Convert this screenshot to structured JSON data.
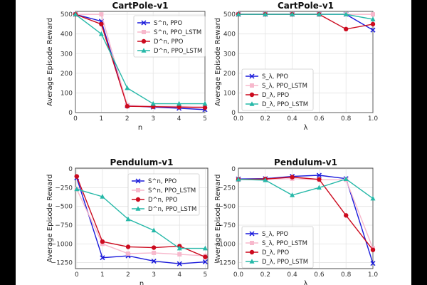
{
  "chart_data": [
    {
      "type": "line",
      "title": "CartPole-v1",
      "xlabel": "n",
      "ylabel": "Average Episode Reward",
      "x": [
        0,
        1,
        2,
        3,
        4,
        5
      ],
      "xticks": [
        "0",
        "1",
        "2",
        "3",
        "4",
        "5"
      ],
      "xlim": [
        0,
        5
      ],
      "yticks": [
        0,
        100,
        200,
        300,
        400,
        500
      ],
      "ylim": [
        0,
        515
      ],
      "legend": "top-right",
      "series": [
        {
          "name": "S^n, PPO",
          "values": [
            500,
            465,
            35,
            28,
            22,
            15
          ]
        },
        {
          "name": "S^n, PPO_LSTM",
          "values": [
            500,
            500,
            38,
            32,
            32,
            30
          ]
        },
        {
          "name": "D^n, PPO",
          "values": [
            500,
            450,
            32,
            30,
            28,
            25
          ]
        },
        {
          "name": "D^n, PPO_LSTM",
          "values": [
            500,
            400,
            125,
            45,
            45,
            45
          ]
        }
      ]
    },
    {
      "type": "line",
      "title": "CartPole-v1",
      "xlabel": "λ",
      "ylabel": "Average Episode Reward",
      "x": [
        0.0,
        0.2,
        0.4,
        0.6,
        0.8,
        1.0
      ],
      "xticks": [
        "0.0",
        "0.2",
        "0.4",
        "0.6",
        "0.8",
        "1.0"
      ],
      "xlim": [
        0,
        1
      ],
      "yticks": [
        0,
        100,
        200,
        300,
        400,
        500
      ],
      "ylim": [
        0,
        515
      ],
      "legend": "bottom-left",
      "series": [
        {
          "name": "S_λ, PPO",
          "values": [
            500,
            500,
            500,
            500,
            500,
            420
          ]
        },
        {
          "name": "S_λ, PPO_LSTM",
          "values": [
            500,
            500,
            500,
            500,
            500,
            500
          ]
        },
        {
          "name": "D_λ, PPO",
          "values": [
            500,
            500,
            500,
            500,
            425,
            450
          ]
        },
        {
          "name": "D_λ, PPO_LSTM",
          "values": [
            500,
            500,
            500,
            500,
            500,
            475
          ]
        }
      ]
    },
    {
      "type": "line",
      "title": "Pendulum-v1",
      "xlabel": "n",
      "ylabel": "Average Episode Reward",
      "x": [
        0,
        1,
        2,
        3,
        4,
        5
      ],
      "xticks": [
        "0",
        "1",
        "2",
        "3",
        "4",
        "5"
      ],
      "xlim": [
        -0.05,
        5.1
      ],
      "yticks": [
        0,
        -250,
        -500,
        -750,
        -1000,
        -1250
      ],
      "ytick_labels": [
        "0",
        "−250",
        "−500",
        "−750",
        "−1000",
        "−1250"
      ],
      "ylim": [
        -1330,
        10
      ],
      "legend": "top-right",
      "series": [
        {
          "name": "S^n, PPO",
          "values": [
            -120,
            -1185,
            -1160,
            -1230,
            -1265,
            -1240
          ]
        },
        {
          "name": "S^n, PPO_LSTM",
          "values": [
            -270,
            -1000,
            -1130,
            -1120,
            -1140,
            -1160
          ]
        },
        {
          "name": "D^n, PPO",
          "values": [
            -100,
            -970,
            -1040,
            -1050,
            -1030,
            -1175
          ]
        },
        {
          "name": "D^n, PPO_LSTM",
          "values": [
            -270,
            -370,
            -670,
            -820,
            -1060,
            -1060
          ]
        }
      ]
    },
    {
      "type": "line",
      "title": "Pendulum-v1",
      "xlabel": "λ",
      "ylabel": "Average Episode Reward",
      "x": [
        0.0,
        0.2,
        0.4,
        0.6,
        0.8,
        1.0
      ],
      "xticks": [
        "0.0",
        "0.2",
        "0.4",
        "0.6",
        "0.8",
        "1.0"
      ],
      "xlim": [
        0,
        1
      ],
      "yticks": [
        0,
        -250,
        -500,
        -750,
        -1000,
        -1250
      ],
      "ytick_labels": [
        "0",
        "−250",
        "−500",
        "−750",
        "−1000",
        "−1250"
      ],
      "ylim": [
        -1330,
        10
      ],
      "legend": "bottom-left",
      "series": [
        {
          "name": "S_λ, PPO",
          "values": [
            -135,
            -130,
            -100,
            -85,
            -130,
            -1260
          ]
        },
        {
          "name": "S_λ, PPO_LSTM",
          "values": [
            -145,
            -140,
            -130,
            -145,
            -145,
            -1060
          ]
        },
        {
          "name": "D_λ, PPO",
          "values": [
            -140,
            -135,
            -110,
            -140,
            -620,
            -1080
          ]
        },
        {
          "name": "D_λ, PPO_LSTM",
          "values": [
            -140,
            -150,
            -350,
            -250,
            -135,
            -395
          ]
        }
      ]
    }
  ],
  "series_styles": [
    {
      "color": "#1a1adb",
      "marker": "x"
    },
    {
      "color": "#f7b8cc",
      "marker": "square"
    },
    {
      "color": "#cc0a1e",
      "marker": "circle"
    },
    {
      "color": "#26b8a8",
      "marker": "triangle"
    }
  ]
}
